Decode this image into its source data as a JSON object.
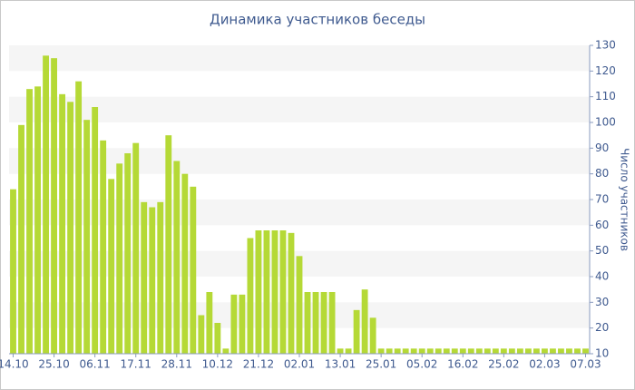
{
  "chart_data": {
    "type": "bar",
    "title": "Динамика участников беседы",
    "y_axis_label": "Число участников",
    "categories": [
      "14.10",
      null,
      null,
      null,
      null,
      "25.10",
      null,
      null,
      null,
      null,
      "06.11",
      null,
      null,
      null,
      null,
      "17.11",
      null,
      null,
      null,
      null,
      "28.11",
      null,
      null,
      null,
      null,
      "10.12",
      null,
      null,
      null,
      null,
      "21.12",
      null,
      null,
      null,
      null,
      "02.01",
      null,
      null,
      null,
      null,
      "13.01",
      null,
      null,
      null,
      null,
      "25.01",
      null,
      null,
      null,
      null,
      "05.02",
      null,
      null,
      null,
      null,
      "16.02",
      null,
      null,
      null,
      null,
      "25.02",
      null,
      null,
      null,
      null,
      "02.03",
      null,
      null,
      null,
      null,
      "07.03"
    ],
    "values": [
      74,
      99,
      113,
      114,
      126,
      125,
      111,
      108,
      116,
      101,
      106,
      93,
      78,
      84,
      88,
      92,
      69,
      67,
      69,
      95,
      85,
      80,
      75,
      25,
      34,
      22,
      12,
      33,
      33,
      55,
      58,
      58,
      58,
      58,
      57,
      48,
      34,
      34,
      34,
      34,
      12,
      12,
      27,
      35,
      24,
      12,
      12,
      12,
      12,
      12,
      12,
      12,
      12,
      12,
      12,
      12,
      12,
      12,
      12,
      12,
      12,
      12,
      12,
      12,
      12,
      12,
      12,
      12,
      12,
      12,
      12
    ],
    "color": "#b5d936",
    "ylim": [
      10,
      130
    ],
    "yticks": [
      10,
      20,
      30,
      40,
      50,
      60,
      70,
      80,
      90,
      100,
      110,
      120,
      130
    ],
    "grid": true
  }
}
